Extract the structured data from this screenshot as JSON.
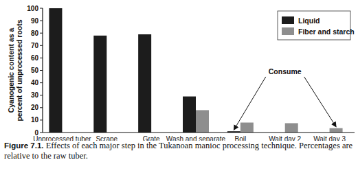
{
  "chart_data": {
    "type": "bar",
    "title": "Figure 7.1.",
    "subtitle": "Effects of each major step in the Tukanoan manioc processing technique. Percentages are relative to the raw tuber.",
    "ylabel": "Cyanogenic content as a percent of unprocessed roots",
    "categories": [
      "Unprocessed tuber",
      "Scrape",
      "Grate",
      "Wash and separate",
      "Boil",
      "Wait day 2",
      "Wait day 3"
    ],
    "series": [
      {
        "name": "Liquid",
        "color": "#1c1c1c",
        "values": [
          100,
          78,
          79,
          29,
          1,
          null,
          null
        ]
      },
      {
        "name": "Fiber and starch",
        "color": "#8e8e8e",
        "values": [
          null,
          null,
          null,
          18,
          8,
          7.5,
          3.5
        ]
      }
    ],
    "ylim": [
      0,
      100
    ],
    "yticks": [
      0,
      10,
      20,
      30,
      40,
      50,
      60,
      70,
      80,
      90,
      100
    ],
    "grid": false,
    "legend": "upper right",
    "annotations": [
      "Consume"
    ]
  }
}
